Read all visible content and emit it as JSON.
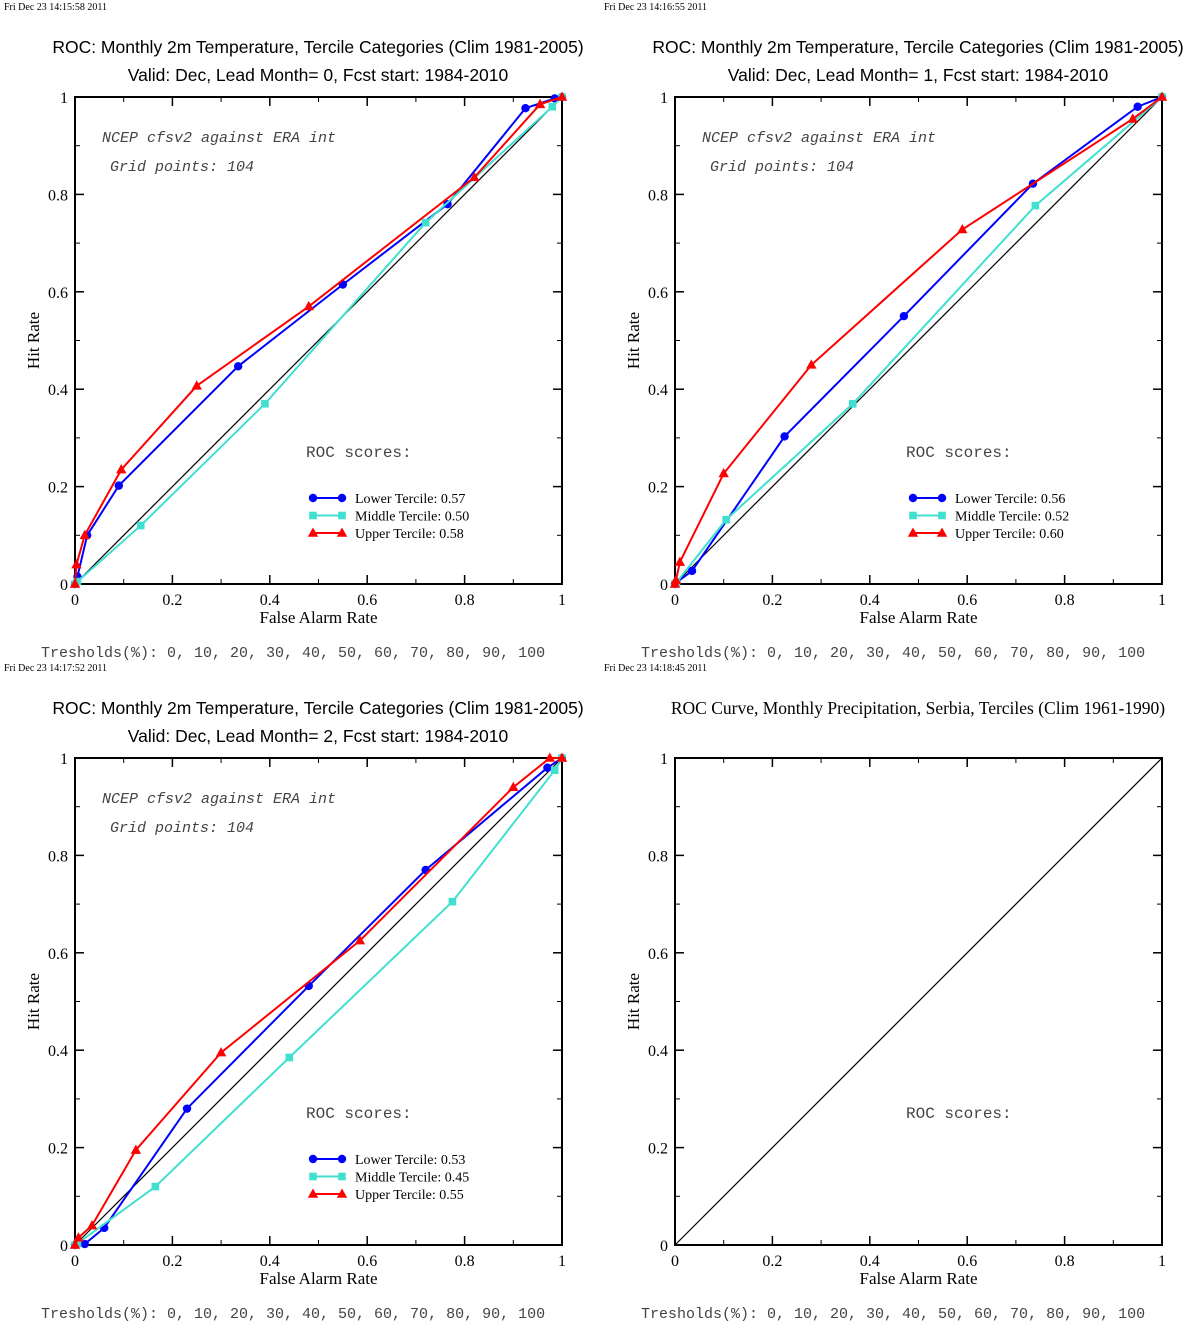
{
  "colors": {
    "lower": "#0000ff",
    "middle": "#40e0d0",
    "upper": "#ff0000",
    "diagonal": "#000000",
    "axis": "#000000",
    "background": "#ffffff"
  },
  "markers": {
    "lower": "circle",
    "middle": "square",
    "upper": "triangle"
  },
  "chart_data": [
    {
      "type": "line",
      "timestamp": "Fri Dec 23 14:15:58 2011",
      "title": "ROC: Monthly 2m Temperature, Tercile Categories (Clim 1981-2005)",
      "subtitle": "Valid: Dec, Lead Month= 0, Fcst start: 1984-2010",
      "xlabel": "False Alarm Rate",
      "ylabel": "Hit Rate",
      "xlim": [
        0,
        1
      ],
      "ylim": [
        0,
        1
      ],
      "xticks": [
        "0",
        "0.2",
        "0.4",
        "0.6",
        "0.8",
        "1"
      ],
      "yticks": [
        "0",
        "0.2",
        "0.4",
        "0.6",
        "0.8",
        "1"
      ],
      "grid": false,
      "annotations": [
        "NCEP cfsv2 against ERA int",
        "Grid points:  104"
      ],
      "scores_title": "ROC scores:",
      "legend_position": "bottom-right",
      "footer": "Tresholds(%): 0, 10, 20, 30, 40, 50, 60, 70, 80, 90, 100",
      "series": [
        {
          "name": "Lower Tercile: 0.57",
          "key": "lower",
          "x": [
            0,
            0.005,
            0.025,
            0.09,
            0.335,
            0.55,
            0.765,
            0.925,
            0.985,
            1
          ],
          "y": [
            0,
            0.015,
            0.1,
            0.202,
            0.447,
            0.615,
            0.78,
            0.977,
            0.997,
            1
          ]
        },
        {
          "name": "Middle Tercile: 0.50",
          "key": "middle",
          "x": [
            0,
            0.005,
            0.135,
            0.39,
            0.72,
            0.98,
            1
          ],
          "y": [
            0,
            0.005,
            0.12,
            0.37,
            0.742,
            0.98,
            1
          ]
        },
        {
          "name": "Upper Tercile: 0.58",
          "key": "upper",
          "x": [
            0,
            0.003,
            0.02,
            0.095,
            0.25,
            0.48,
            0.82,
            0.955,
            1
          ],
          "y": [
            0,
            0.04,
            0.1,
            0.235,
            0.407,
            0.57,
            0.835,
            0.985,
            1
          ]
        }
      ]
    },
    {
      "type": "line",
      "timestamp": "Fri Dec 23 14:16:55 2011",
      "title": "ROC: Monthly 2m Temperature, Tercile Categories (Clim 1981-2005)",
      "subtitle": "Valid: Dec, Lead Month= 1, Fcst start: 1984-2010",
      "xlabel": "False Alarm Rate",
      "ylabel": "Hit Rate",
      "xlim": [
        0,
        1
      ],
      "ylim": [
        0,
        1
      ],
      "xticks": [
        "0",
        "0.2",
        "0.4",
        "0.6",
        "0.8",
        "1"
      ],
      "yticks": [
        "0",
        "0.2",
        "0.4",
        "0.6",
        "0.8",
        "1"
      ],
      "grid": false,
      "annotations": [
        "NCEP cfsv2 against ERA int",
        "Grid points:  104"
      ],
      "scores_title": "ROC scores:",
      "legend_position": "bottom-right",
      "footer": "Tresholds(%): 0, 10, 20, 30, 40, 50, 60, 70, 80, 90, 100",
      "series": [
        {
          "name": "Lower Tercile: 0.56",
          "key": "lower",
          "x": [
            0,
            0.003,
            0.035,
            0.225,
            0.47,
            0.735,
            0.95,
            1
          ],
          "y": [
            0,
            0.003,
            0.027,
            0.303,
            0.55,
            0.822,
            0.98,
            1
          ]
        },
        {
          "name": "Middle Tercile: 0.52",
          "key": "middle",
          "x": [
            0,
            0.003,
            0.105,
            0.365,
            0.74,
            1
          ],
          "y": [
            0,
            0.003,
            0.132,
            0.37,
            0.777,
            1
          ]
        },
        {
          "name": "Upper Tercile: 0.60",
          "key": "upper",
          "x": [
            0,
            0.002,
            0.01,
            0.1,
            0.28,
            0.59,
            0.94,
            1
          ],
          "y": [
            0,
            0.008,
            0.045,
            0.227,
            0.45,
            0.728,
            0.955,
            1
          ]
        }
      ]
    },
    {
      "type": "line",
      "timestamp": "Fri Dec 23 14:17:52 2011",
      "title": "ROC: Monthly 2m Temperature, Tercile Categories (Clim 1981-2005)",
      "subtitle": "Valid: Dec, Lead Month= 2, Fcst start: 1984-2010",
      "xlabel": "False Alarm Rate",
      "ylabel": "Hit Rate",
      "xlim": [
        0,
        1
      ],
      "ylim": [
        0,
        1
      ],
      "xticks": [
        "0",
        "0.2",
        "0.4",
        "0.6",
        "0.8",
        "1"
      ],
      "yticks": [
        "0",
        "0.2",
        "0.4",
        "0.6",
        "0.8",
        "1"
      ],
      "grid": false,
      "annotations": [
        "NCEP cfsv2 against ERA int",
        "Grid points:  104"
      ],
      "scores_title": "ROC scores:",
      "legend_position": "bottom-right",
      "footer": "Tresholds(%): 0, 10, 20, 30, 40, 50, 60, 70, 80, 90, 100",
      "series": [
        {
          "name": "Lower Tercile: 0.53",
          "key": "lower",
          "x": [
            0,
            0.02,
            0.06,
            0.23,
            0.48,
            0.72,
            0.97,
            1
          ],
          "y": [
            0,
            0.002,
            0.035,
            0.28,
            0.532,
            0.77,
            0.98,
            1
          ]
        },
        {
          "name": "Middle Tercile: 0.45",
          "key": "middle",
          "x": [
            0,
            0.005,
            0.165,
            0.44,
            0.775,
            0.985,
            1
          ],
          "y": [
            0,
            0.003,
            0.12,
            0.385,
            0.705,
            0.975,
            1
          ]
        },
        {
          "name": "Upper Tercile: 0.55",
          "key": "upper",
          "x": [
            0,
            0.007,
            0.035,
            0.125,
            0.3,
            0.585,
            0.9,
            0.975,
            1
          ],
          "y": [
            0,
            0.015,
            0.04,
            0.195,
            0.395,
            0.625,
            0.94,
            1,
            1
          ]
        }
      ]
    },
    {
      "type": "line",
      "timestamp": "Fri Dec 23 14:18:45 2011",
      "title": "ROC Curve, Monthly Precipitation, Serbia, Terciles (Clim 1961-1990)",
      "subtitle": "",
      "xlabel": "False Alarm Rate",
      "ylabel": "Hit Rate",
      "xlim": [
        0,
        1
      ],
      "ylim": [
        0,
        1
      ],
      "xticks": [
        "0",
        "0.2",
        "0.4",
        "0.6",
        "0.8",
        "1"
      ],
      "yticks": [
        "0",
        "0.2",
        "0.4",
        "0.6",
        "0.8",
        "1"
      ],
      "grid": false,
      "annotations": [],
      "scores_title": "ROC scores:",
      "legend_position": "bottom-right",
      "footer": "Tresholds(%): 0, 10, 20, 30, 40, 50, 60, 70, 80, 90, 100",
      "series": []
    }
  ]
}
